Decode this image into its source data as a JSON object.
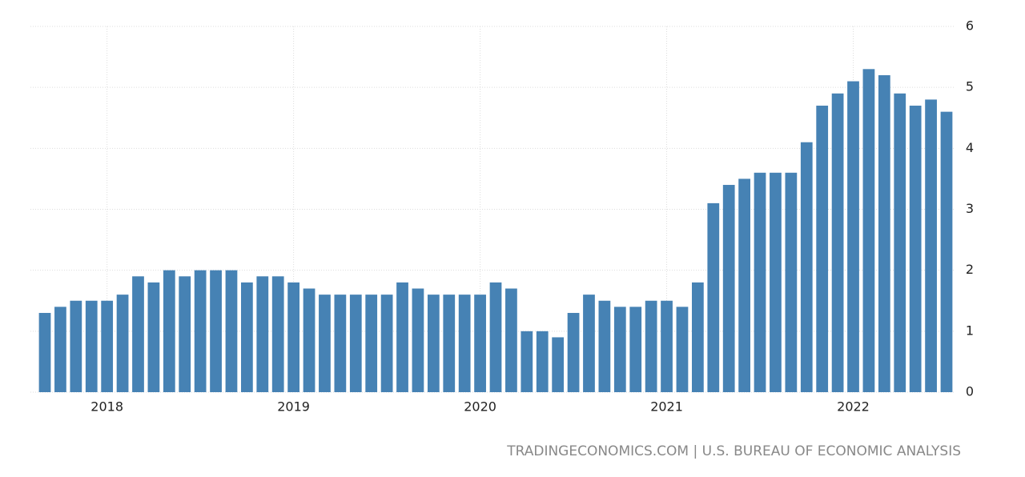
{
  "chart_data": {
    "type": "bar",
    "categories": [
      null,
      null,
      null,
      null,
      "2018",
      null,
      null,
      null,
      null,
      null,
      null,
      null,
      null,
      null,
      null,
      null,
      "2019",
      null,
      null,
      null,
      null,
      null,
      null,
      null,
      null,
      null,
      null,
      null,
      "2020",
      null,
      null,
      null,
      null,
      null,
      null,
      null,
      null,
      null,
      null,
      null,
      "2021",
      null,
      null,
      null,
      null,
      null,
      null,
      null,
      null,
      null,
      null,
      null,
      "2022",
      null,
      null,
      null,
      null,
      null,
      null
    ],
    "values": [
      1.3,
      1.4,
      1.5,
      1.5,
      1.5,
      1.6,
      1.9,
      1.8,
      2.0,
      1.9,
      2.0,
      2.0,
      2.0,
      1.8,
      1.9,
      1.9,
      1.8,
      1.7,
      1.6,
      1.6,
      1.6,
      1.6,
      1.6,
      1.8,
      1.7,
      1.6,
      1.6,
      1.6,
      1.6,
      1.8,
      1.7,
      1.0,
      1.0,
      0.9,
      1.3,
      1.6,
      1.5,
      1.4,
      1.4,
      1.5,
      1.5,
      1.4,
      1.8,
      3.1,
      3.4,
      3.5,
      3.6,
      3.6,
      3.6,
      4.1,
      4.7,
      4.9,
      5.1,
      5.3,
      5.2,
      4.9,
      4.7,
      4.8,
      4.6
    ],
    "color": "#4682b4",
    "ylim": [
      0,
      6
    ],
    "yticks": [
      0,
      1,
      2,
      3,
      4,
      5,
      6
    ],
    "grid": true,
    "source": "TRADINGECONOMICS.COM | U.S. BUREAU OF ECONOMIC ANALYSIS"
  }
}
